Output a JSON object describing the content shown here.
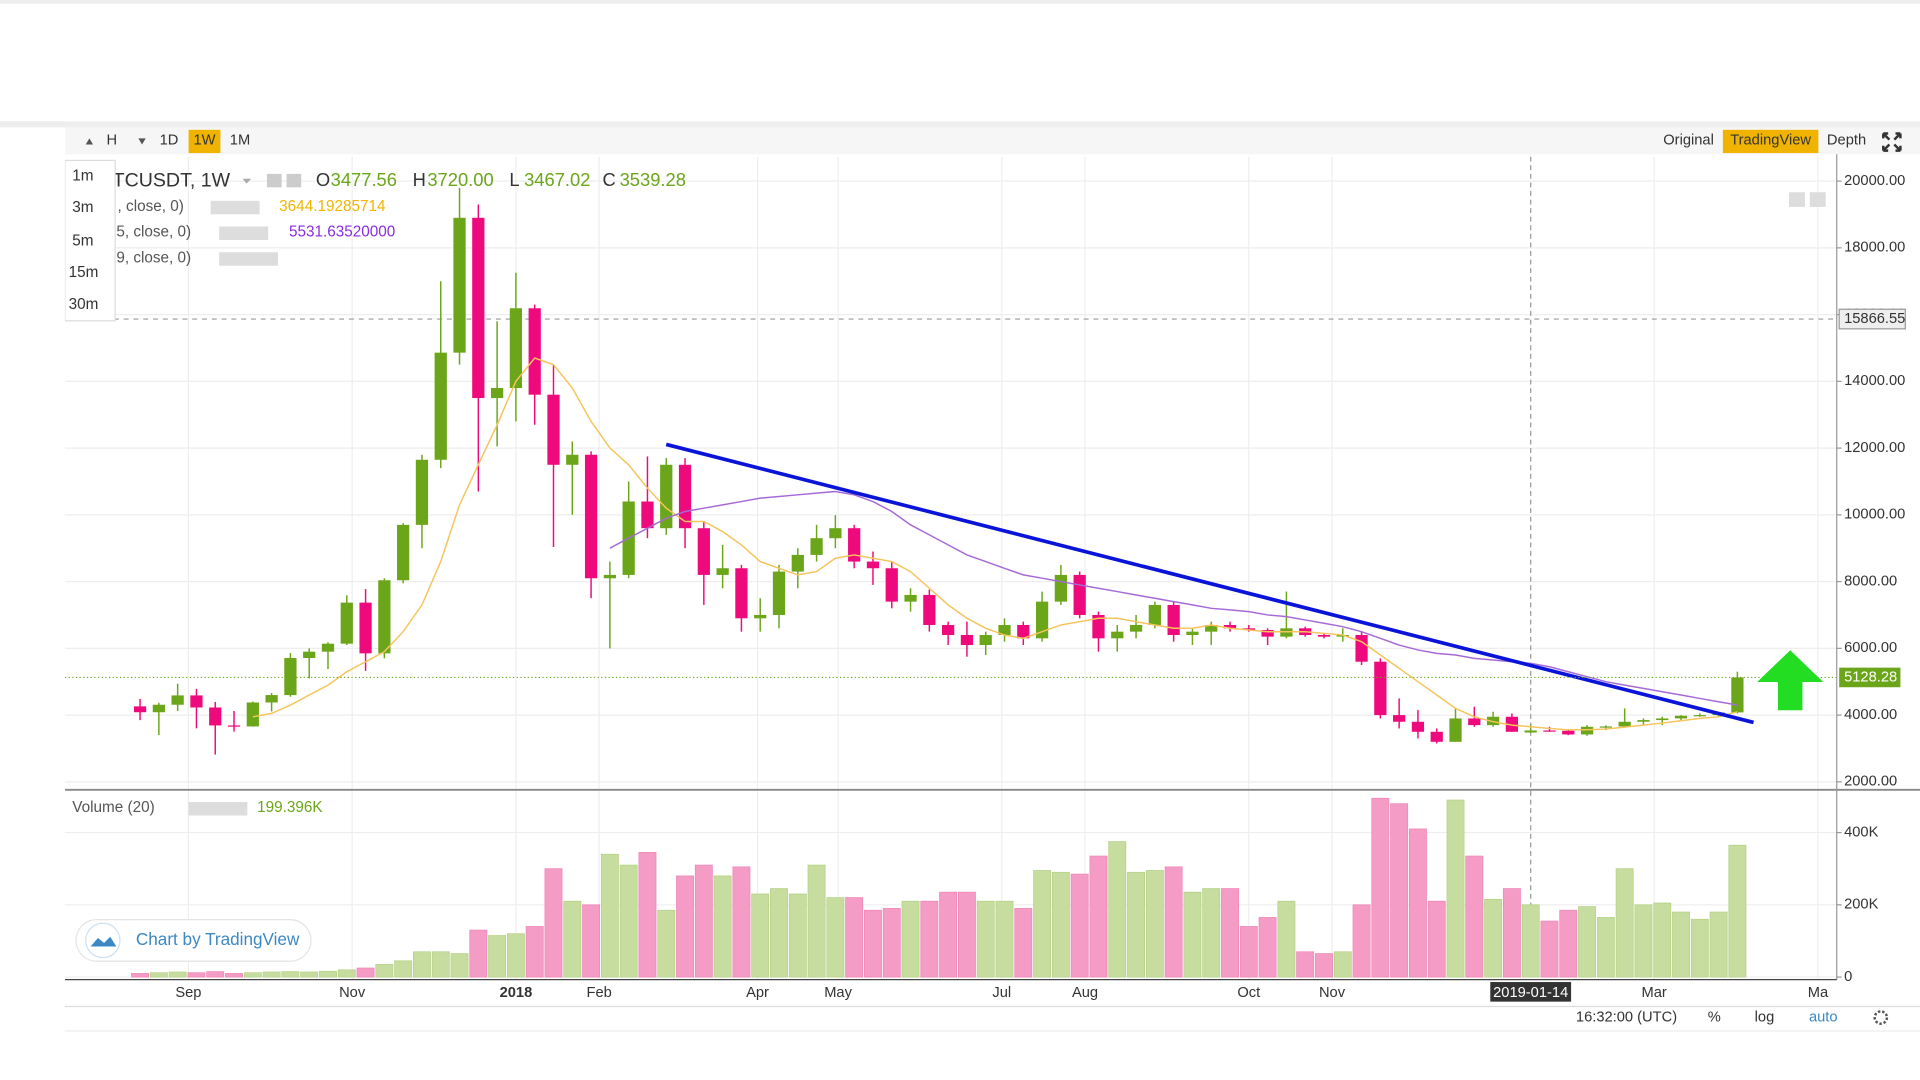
{
  "toolbar": {
    "intervals": [
      "H",
      "1D",
      "1W",
      "1M"
    ],
    "views": [
      "Original",
      "TradingView",
      "Depth"
    ],
    "resolutions": [
      "1m",
      "3m",
      "5m",
      "15m",
      "30m"
    ]
  },
  "legend": {
    "symbol": "TCUSDT, 1W",
    "o_label": "O",
    "o": "3477.56",
    "h_label": "H",
    "h": "3720.00",
    "l_label": "L",
    "l": "3467.02",
    "c_label": "C",
    "c": "3539.28"
  },
  "indicators": [
    {
      "params": ", close, 0)",
      "value": "3644.19285714"
    },
    {
      "params": "5, close, 0)",
      "value": "5531.63520000"
    },
    {
      "params": "9, close, 0)"
    }
  ],
  "volume_legend": {
    "name": "Volume (20)",
    "value": "199.396K"
  },
  "branding": "Chart by TradingView",
  "status": {
    "time": "16:32:00 (UTC)",
    "percent": "%",
    "log": "log",
    "auto": "auto"
  },
  "chart_data": [
    {
      "type": "candlestick",
      "up_color": "#6ba61a",
      "down_color": "#ee0a7c",
      "x": [
        "2017-08-14",
        "2017-08-21",
        "2017-08-28",
        "2017-09-04",
        "2017-09-11",
        "2017-09-18",
        "2017-09-25",
        "2017-10-02",
        "2017-10-09",
        "2017-10-16",
        "2017-10-23",
        "2017-10-30",
        "2017-11-06",
        "2017-11-13",
        "2017-11-20",
        "2017-11-27",
        "2017-12-04",
        "2017-12-11",
        "2017-12-18",
        "2017-12-25",
        "2018-01-01",
        "2018-01-08",
        "2018-01-15",
        "2018-01-22",
        "2018-01-29",
        "2018-02-05",
        "2018-02-12",
        "2018-02-19",
        "2018-02-26",
        "2018-03-05",
        "2018-03-12",
        "2018-03-19",
        "2018-03-26",
        "2018-04-02",
        "2018-04-09",
        "2018-04-16",
        "2018-04-23",
        "2018-04-30",
        "2018-05-07",
        "2018-05-14",
        "2018-05-21",
        "2018-05-28",
        "2018-06-04",
        "2018-06-11",
        "2018-06-18",
        "2018-06-25",
        "2018-07-02",
        "2018-07-09",
        "2018-07-16",
        "2018-07-23",
        "2018-07-30",
        "2018-08-06",
        "2018-08-13",
        "2018-08-20",
        "2018-08-27",
        "2018-09-03",
        "2018-09-10",
        "2018-09-17",
        "2018-09-24",
        "2018-10-01",
        "2018-10-08",
        "2018-10-15",
        "2018-10-22",
        "2018-10-29",
        "2018-11-05",
        "2018-11-12",
        "2018-11-19",
        "2018-11-26",
        "2018-12-03",
        "2018-12-10",
        "2018-12-17",
        "2018-12-24",
        "2018-12-31",
        "2019-01-07",
        "2019-01-14",
        "2019-01-21",
        "2019-01-28",
        "2019-02-04",
        "2019-02-11",
        "2019-02-18",
        "2019-02-25",
        "2019-03-04",
        "2019-03-11",
        "2019-03-18",
        "2019-03-25",
        "2019-04-01"
      ],
      "open": [
        4261,
        4086,
        4310,
        4590,
        4228,
        3690,
        3660,
        4378,
        4600,
        5710,
        5900,
        6140,
        7370,
        5850,
        8040,
        9700,
        11650,
        14860,
        18900,
        13500,
        13800,
        16190,
        13600,
        11500,
        11800,
        8100,
        8200,
        10400,
        9600,
        11500,
        9600,
        8200,
        8400,
        6900,
        7000,
        8300,
        8800,
        9300,
        9600,
        8600,
        8400,
        7400,
        7600,
        6700,
        6400,
        6100,
        6400,
        6700,
        6300,
        7400,
        8200,
        7000,
        6300,
        6500,
        6700,
        7300,
        6400,
        6500,
        6700,
        6600,
        6550,
        6350,
        6600,
        6400,
        6350,
        6400,
        5600,
        4000,
        3800,
        3500,
        3200,
        3900,
        3700,
        3950,
        3477.56,
        3539.28,
        3530,
        3420,
        3650,
        3660,
        3800,
        3850,
        3900,
        3980,
        4000,
        4080
      ],
      "high": [
        4485,
        4370,
        4939,
        4788,
        4394,
        4123,
        4406,
        4662,
        5856,
        6000,
        6180,
        7590,
        7776,
        8100,
        9750,
        11800,
        17000,
        19798,
        19300,
        15800,
        17252,
        16300,
        14500,
        12200,
        11900,
        8600,
        11000,
        11750,
        11700,
        11700,
        9800,
        9100,
        8500,
        7500,
        8500,
        9000,
        9700,
        9990,
        9700,
        8900,
        8600,
        7800,
        7760,
        6800,
        6800,
        6500,
        6900,
        6800,
        7700,
        8500,
        8300,
        7100,
        6700,
        7000,
        7400,
        7400,
        6600,
        6800,
        6800,
        6700,
        6600,
        7700,
        6650,
        6450,
        6600,
        6500,
        5700,
        4500,
        4150,
        3600,
        4200,
        4250,
        4100,
        4050,
        3720,
        3650,
        3550,
        3700,
        3690,
        4200,
        3900,
        3950,
        4000,
        4050,
        4100,
        5300
      ],
      "low": [
        3850,
        3400,
        4124,
        3603,
        2817,
        3505,
        3653,
        4110,
        4550,
        5100,
        5380,
        6100,
        5325,
        5700,
        7950,
        9000,
        11400,
        14500,
        10700,
        12050,
        12800,
        12700,
        9035,
        10000,
        7500,
        6000,
        8100,
        9300,
        9400,
        9000,
        7300,
        7800,
        6500,
        6500,
        6600,
        7800,
        8600,
        9000,
        8400,
        7900,
        7200,
        7100,
        6500,
        6100,
        5750,
        5800,
        6200,
        6100,
        6200,
        7300,
        6900,
        5900,
        5900,
        6300,
        6600,
        6200,
        6100,
        6100,
        6500,
        6500,
        6100,
        6300,
        6350,
        6300,
        6200,
        5500,
        3900,
        3600,
        3300,
        3150,
        3200,
        3650,
        3650,
        3500,
        3467.02,
        3500,
        3400,
        3380,
        3550,
        3640,
        3700,
        3700,
        3850,
        3950,
        3950,
        4050
      ],
      "close": [
        4086,
        4310,
        4590,
        4228,
        3690,
        3660,
        4378,
        4600,
        5710,
        5900,
        6140,
        7370,
        5850,
        8040,
        9700,
        11650,
        14860,
        18900,
        13500,
        13800,
        16190,
        13600,
        11500,
        11800,
        8100,
        8200,
        10400,
        9600,
        11500,
        9600,
        8200,
        8400,
        6900,
        7000,
        8300,
        8800,
        9300,
        9600,
        8600,
        8400,
        7400,
        7600,
        6700,
        6400,
        6100,
        6400,
        6700,
        6300,
        7400,
        8200,
        7000,
        6300,
        6500,
        6700,
        7300,
        6400,
        6500,
        6700,
        6600,
        6550,
        6350,
        6600,
        6400,
        6350,
        6400,
        5600,
        4000,
        3800,
        3500,
        3200,
        3900,
        3700,
        3950,
        3500,
        3539.28,
        3530,
        3420,
        3650,
        3660,
        3800,
        3850,
        3900,
        3980,
        4000,
        4080,
        5128.28
      ],
      "ma": [
        {
          "color": "#f5c45a",
          "values": [
            null,
            null,
            null,
            null,
            null,
            null,
            3950,
            4050,
            4300,
            4600,
            4900,
            5300,
            5600,
            5900,
            6500,
            7300,
            8600,
            10300,
            11500,
            12700,
            14000,
            14700,
            14500,
            13800,
            12800,
            12000,
            11500,
            10800,
            10200,
            9800,
            9800,
            9500,
            9100,
            8600,
            8400,
            8200,
            8300,
            8700,
            8800,
            8700,
            8600,
            8300,
            7800,
            7300,
            6900,
            6600,
            6400,
            6300,
            6500,
            6700,
            6800,
            6900,
            6900,
            6800,
            6700,
            6600,
            6600,
            6700,
            6600,
            6550,
            6500,
            6500,
            6500,
            6450,
            6400,
            6200,
            5800,
            5400,
            5000,
            4600,
            4200,
            3950,
            3800,
            3700,
            3650,
            3600,
            3560,
            3560,
            3580,
            3640,
            3700,
            3760,
            3830,
            3900,
            3950,
            4100
          ]
        },
        {
          "color": "#a66ad6",
          "values": [
            null,
            null,
            null,
            null,
            null,
            null,
            null,
            null,
            null,
            null,
            null,
            null,
            null,
            null,
            null,
            null,
            null,
            null,
            null,
            null,
            null,
            null,
            null,
            null,
            null,
            9000,
            9300,
            9600,
            9900,
            10100,
            10200,
            10300,
            10400,
            10500,
            10550,
            10600,
            10650,
            10700,
            10600,
            10400,
            10100,
            9700,
            9400,
            9100,
            8800,
            8600,
            8400,
            8200,
            8100,
            8000,
            7900,
            7800,
            7700,
            7600,
            7500,
            7400,
            7300,
            7200,
            7150,
            7100,
            7000,
            6950,
            6850,
            6750,
            6650,
            6500,
            6300,
            6100,
            5950,
            5850,
            5800,
            5700,
            5650,
            5600,
            5550,
            5450,
            5300,
            5150,
            5000,
            4900,
            4800,
            4700,
            4600,
            4500,
            4400,
            4300
          ]
        }
      ],
      "trendline": {
        "x": [
          "2018-02-26",
          "2019-04-07"
        ],
        "y": [
          12110,
          3780
        ],
        "color": "#0a14d8"
      },
      "high_line": 15866.55,
      "last_price": 5128.28,
      "crosshair": "2019-01-14",
      "xlim": [
        "2017-07-17",
        "2019-05-08"
      ],
      "xticks": [
        {
          "value": "2017-09-01",
          "label": "Sep"
        },
        {
          "value": "2017-11-01",
          "label": "Nov"
        },
        {
          "value": "2018-01-01",
          "label": "2018"
        },
        {
          "value": "2018-02-01",
          "label": "Feb"
        },
        {
          "value": "2018-04-01",
          "label": "Apr"
        },
        {
          "value": "2018-05-01",
          "label": "May"
        },
        {
          "value": "2018-07-01",
          "label": "Jul"
        },
        {
          "value": "2018-08-01",
          "label": "Aug"
        },
        {
          "value": "2018-10-01",
          "label": "Oct"
        },
        {
          "value": "2018-11-01",
          "label": "Nov"
        },
        {
          "value": "2019-03-01",
          "label": "Mar"
        },
        {
          "value": "2019-05-01",
          "label": "Ma"
        }
      ],
      "ylim": [
        1780,
        20730
      ],
      "yticks": [
        {
          "value": 2000,
          "label": "2000.00"
        },
        {
          "value": 4000,
          "label": "4000.00"
        },
        {
          "value": 6000,
          "label": "6000.00"
        },
        {
          "value": 8000,
          "label": "8000.00"
        },
        {
          "value": 10000,
          "label": "10000.00"
        },
        {
          "value": 12000,
          "label": "12000.00"
        },
        {
          "value": 14000,
          "label": "14000.00"
        },
        {
          "value": 16000,
          "label": "16000.00"
        },
        {
          "value": 18000,
          "label": "18000.00"
        },
        {
          "value": 20000,
          "label": "20000.00"
        }
      ],
      "grid": true
    },
    {
      "type": "bar",
      "up_color": "#c6dd9f",
      "down_color": "#f59cc6",
      "values": [
        10,
        12,
        14,
        12,
        15,
        10,
        12,
        14,
        15,
        14,
        16,
        20,
        25,
        35,
        45,
        70,
        70,
        65,
        130,
        115,
        120,
        140,
        300,
        210,
        200,
        340,
        310,
        345,
        185,
        280,
        310,
        280,
        305,
        230,
        245,
        230,
        310,
        220,
        220,
        185,
        190,
        210,
        210,
        235,
        235,
        210,
        210,
        190,
        295,
        290,
        285,
        335,
        375,
        290,
        295,
        305,
        235,
        245,
        245,
        140,
        165,
        210,
        70,
        65,
        70,
        200,
        495,
        480,
        410,
        210,
        490,
        335,
        215,
        245,
        200,
        155,
        185,
        195,
        165,
        300,
        200,
        205,
        180,
        160,
        180,
        365
      ],
      "ylim": [
        -7,
        515
      ],
      "yticks": [
        0,
        {
          "value": 200,
          "label": "200K"
        },
        {
          "value": 400,
          "label": "400K"
        }
      ],
      "grid": true
    }
  ]
}
